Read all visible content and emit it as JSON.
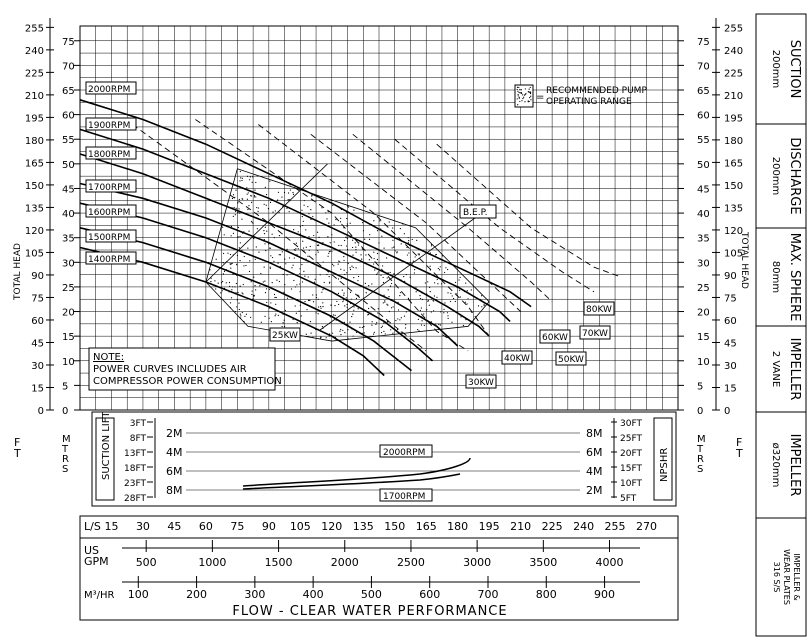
{
  "chart_data": {
    "type": "line",
    "title": "FLOW - CLEAR WATER PERFORMANCE",
    "x_axis": {
      "unit": "L/S",
      "ticks": [
        15,
        30,
        45,
        60,
        75,
        90,
        105,
        120,
        135,
        150,
        165,
        180,
        195,
        210,
        225,
        240,
        255,
        270
      ],
      "range": [
        0,
        285
      ]
    },
    "y_axis_left_ft": {
      "unit": "FT",
      "ticks": [
        0,
        15,
        30,
        45,
        60,
        75,
        90,
        105,
        120,
        135,
        150,
        165,
        180,
        195,
        210,
        225,
        240,
        255
      ]
    },
    "y_axis_left_m": {
      "unit": "MTRS",
      "ticks": [
        0,
        5,
        10,
        15,
        20,
        25,
        30,
        35,
        40,
        45,
        50,
        55,
        60,
        65,
        70,
        75
      ],
      "range": [
        0,
        78
      ]
    },
    "y_axis_right_label": "TOTAL HEAD",
    "y_axis_left_label": "TOTAL HEAD",
    "us_gpm": {
      "label": "US GPM",
      "ticks": [
        500,
        1000,
        1500,
        2000,
        2500,
        3000,
        3500,
        4000
      ]
    },
    "m3hr": {
      "label": "M³/HR",
      "ticks": [
        100,
        200,
        300,
        400,
        500,
        600,
        700,
        800,
        900
      ]
    },
    "series": [
      {
        "name": "2000RPM",
        "points": [
          [
            0,
            63
          ],
          [
            30,
            59
          ],
          [
            60,
            54
          ],
          [
            90,
            48
          ],
          [
            120,
            42
          ],
          [
            150,
            35
          ],
          [
            180,
            29
          ],
          [
            205,
            24
          ],
          [
            215,
            21
          ]
        ]
      },
      {
        "name": "1900RPM",
        "points": [
          [
            0,
            57
          ],
          [
            30,
            53
          ],
          [
            60,
            48
          ],
          [
            90,
            43
          ],
          [
            120,
            37
          ],
          [
            150,
            31
          ],
          [
            180,
            25
          ],
          [
            200,
            20
          ],
          [
            205,
            18
          ]
        ]
      },
      {
        "name": "1800RPM",
        "points": [
          [
            0,
            52
          ],
          [
            30,
            48
          ],
          [
            60,
            43
          ],
          [
            90,
            38
          ],
          [
            120,
            33
          ],
          [
            150,
            27
          ],
          [
            175,
            21
          ],
          [
            190,
            17
          ],
          [
            195,
            15
          ]
        ]
      },
      {
        "name": "1700RPM",
        "points": [
          [
            0,
            46
          ],
          [
            30,
            43
          ],
          [
            60,
            39
          ],
          [
            90,
            34
          ],
          [
            120,
            28
          ],
          [
            150,
            22
          ],
          [
            170,
            17
          ],
          [
            180,
            13
          ]
        ]
      },
      {
        "name": "1600RPM",
        "points": [
          [
            0,
            42
          ],
          [
            30,
            39
          ],
          [
            60,
            35
          ],
          [
            90,
            30
          ],
          [
            120,
            24
          ],
          [
            145,
            18
          ],
          [
            160,
            13
          ],
          [
            168,
            10
          ]
        ]
      },
      {
        "name": "1500RPM",
        "points": [
          [
            0,
            37
          ],
          [
            30,
            34
          ],
          [
            60,
            30
          ],
          [
            90,
            25
          ],
          [
            120,
            19
          ],
          [
            140,
            14
          ],
          [
            152,
            10
          ],
          [
            158,
            8
          ]
        ]
      },
      {
        "name": "1400RPM",
        "points": [
          [
            0,
            33
          ],
          [
            30,
            30
          ],
          [
            60,
            26
          ],
          [
            90,
            21
          ],
          [
            120,
            15
          ],
          [
            135,
            11
          ],
          [
            145,
            7
          ]
        ]
      }
    ],
    "power_curves": [
      "25KW",
      "30KW",
      "40KW",
      "50KW",
      "60KW",
      "70KW",
      "80KW"
    ],
    "labels": {
      "bep": "B.E.P.",
      "legend": "RECOMMENDED PUMP OPERATING RANGE",
      "note_title": "NOTE:",
      "note_line1": "POWER CURVES INCLUDES AIR",
      "note_line2": "COMPRESSOR POWER CONSUMPTION"
    },
    "npshr": {
      "left_title": "SUCTION LIFT",
      "right_title": "NPSHR",
      "left_ft": [
        "3FT",
        "8FT",
        "13FT",
        "18FT",
        "23FT",
        "28FT"
      ],
      "left_m": [
        "2M",
        "4M",
        "6M",
        "8M"
      ],
      "right_m": [
        "8M",
        "6M",
        "4M",
        "2M"
      ],
      "right_ft": [
        "30FT",
        "25FT",
        "20FT",
        "15FT",
        "10FT",
        "5FT"
      ],
      "curve_labels": [
        "2000RPM",
        "1700RPM"
      ]
    }
  },
  "spec_panel": [
    {
      "title": "SUCTION",
      "value": "200mm"
    },
    {
      "title": "DISCHARGE",
      "value": "200mm"
    },
    {
      "title": "MAX. SPHERE",
      "value": "80mm"
    },
    {
      "title": "IMPELLER",
      "value": "2 VANE"
    },
    {
      "title": "IMPELLER",
      "value": "ø320mm"
    },
    {
      "title": "IMPELLER &",
      "value": "WEAR PLATES",
      "value2": "316 S/S"
    }
  ]
}
